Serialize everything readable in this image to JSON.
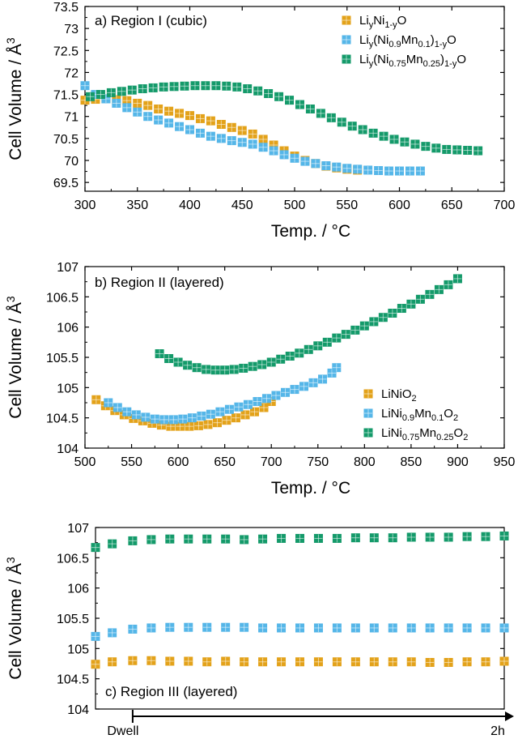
{
  "colors": {
    "orange": "#E3A21A",
    "blue": "#55B6E8",
    "green": "#149A6A"
  },
  "chart_data": [
    {
      "type": "scatter",
      "title": "a) Region I (cubic)",
      "xlabel": "Temp. / °C",
      "ylabel": "Cell Volume / Å³",
      "xlim": [
        300,
        700
      ],
      "ylim": [
        69.3,
        73.5
      ],
      "xticks": [
        "300",
        "350",
        "400",
        "450",
        "500",
        "550",
        "600",
        "650",
        "700"
      ],
      "yticks": [
        "69.5",
        "70",
        "70.5",
        "71",
        "71.5",
        "72",
        "72.5",
        "73",
        "73.5"
      ],
      "legend_position": "top-right",
      "series": [
        {
          "name": "LiyNi1-yO",
          "legend": {
            "base": "Li",
            "sub1": "y",
            "mid": "Ni",
            "sub2": "1-y",
            "end": "O"
          },
          "color_key": "orange",
          "x": [
            300,
            310,
            320,
            330,
            340,
            350,
            360,
            370,
            380,
            390,
            400,
            410,
            420,
            430,
            440,
            450,
            460,
            470,
            480,
            490,
            500,
            510,
            520,
            530,
            540,
            550,
            560
          ],
          "y": [
            71.37,
            71.39,
            71.4,
            71.38,
            71.36,
            71.3,
            71.25,
            71.17,
            71.12,
            71.07,
            71.02,
            70.95,
            70.9,
            70.82,
            70.75,
            70.68,
            70.6,
            70.48,
            70.35,
            70.22,
            70.1,
            70.0,
            69.93,
            69.87,
            69.83,
            69.8,
            69.78
          ]
        },
        {
          "name": "Liy(Ni0.9Mn0.1)1-yO",
          "legend": {
            "base": "Li",
            "sub1": "y",
            "mid": "(Ni",
            "sub2": "0.9",
            "mid2": "Mn",
            "sub3": "0.1",
            "mid3": ")",
            "sub4": "1-y",
            "end": "O"
          },
          "color_key": "blue",
          "x": [
            300,
            310,
            320,
            330,
            340,
            350,
            360,
            370,
            380,
            390,
            400,
            410,
            420,
            430,
            440,
            450,
            460,
            470,
            480,
            490,
            500,
            510,
            520,
            530,
            540,
            550,
            560,
            570,
            580,
            590,
            600,
            610,
            620
          ],
          "y": [
            71.7,
            71.5,
            71.4,
            71.3,
            71.2,
            71.1,
            71.0,
            70.92,
            70.85,
            70.77,
            70.7,
            70.62,
            70.55,
            70.5,
            70.45,
            70.41,
            70.37,
            70.3,
            70.22,
            70.13,
            70.05,
            69.98,
            69.93,
            69.88,
            69.85,
            69.82,
            69.8,
            69.78,
            69.77,
            69.76,
            69.76,
            69.76,
            69.76
          ]
        },
        {
          "name": "Liy(Ni0.75Mn0.25)1-yO",
          "legend": {
            "base": "Li",
            "sub1": "y",
            "mid": "(Ni",
            "sub2": "0.75",
            "mid2": "Mn",
            "sub3": "0.25",
            "mid3": ")",
            "sub4": "1-y",
            "end": "O"
          },
          "color_key": "green",
          "x": [
            305,
            315,
            325,
            335,
            345,
            355,
            365,
            375,
            385,
            395,
            405,
            415,
            425,
            435,
            445,
            455,
            465,
            475,
            485,
            495,
            505,
            515,
            525,
            535,
            545,
            555,
            565,
            575,
            585,
            595,
            605,
            615,
            625,
            635,
            645,
            655,
            665,
            675
          ],
          "y": [
            71.45,
            71.5,
            71.54,
            71.57,
            71.6,
            71.63,
            71.65,
            71.67,
            71.68,
            71.69,
            71.7,
            71.7,
            71.7,
            71.69,
            71.67,
            71.63,
            71.58,
            71.52,
            71.45,
            71.37,
            71.27,
            71.17,
            71.07,
            70.97,
            70.87,
            70.78,
            70.7,
            70.62,
            70.55,
            70.48,
            70.42,
            70.37,
            70.32,
            70.28,
            70.25,
            70.24,
            70.23,
            70.22
          ]
        }
      ]
    },
    {
      "type": "scatter",
      "title": "b) Region II (layered)",
      "xlabel": "Temp. / °C",
      "ylabel": "Cell Volume / Å³",
      "xlim": [
        500,
        950
      ],
      "ylim": [
        104,
        107
      ],
      "xticks": [
        "500",
        "550",
        "600",
        "650",
        "700",
        "750",
        "800",
        "850",
        "900",
        "950"
      ],
      "yticks": [
        "104",
        "104.5",
        "105",
        "105.5",
        "106",
        "106.5",
        "107"
      ],
      "legend_position": "bottom-right",
      "series": [
        {
          "name": "LiNiO2",
          "legend": {
            "base": "LiNiO",
            "sub1": "2"
          },
          "color_key": "orange",
          "x": [
            512,
            522,
            532,
            542,
            552,
            562,
            572,
            582,
            592,
            602,
            612,
            622,
            632,
            642,
            652,
            662,
            672,
            682,
            692,
            700
          ],
          "y": [
            104.8,
            104.7,
            104.62,
            104.55,
            104.49,
            104.45,
            104.41,
            104.38,
            104.36,
            104.36,
            104.36,
            104.37,
            104.39,
            104.42,
            104.46,
            104.5,
            104.55,
            104.6,
            104.67,
            104.77
          ]
        },
        {
          "name": "LiNi0.9Mn0.1O2",
          "legend": {
            "base": "LiNi",
            "sub1": "0.9",
            "mid": "Mn",
            "sub2": "0.1",
            "end": "O",
            "sub3": "2"
          },
          "color_key": "blue",
          "x": [
            525,
            535,
            545,
            555,
            565,
            575,
            585,
            595,
            605,
            615,
            625,
            635,
            645,
            655,
            665,
            675,
            685,
            695,
            705,
            715,
            725,
            735,
            745,
            755,
            765,
            770
          ],
          "y": [
            104.75,
            104.67,
            104.6,
            104.55,
            104.51,
            104.48,
            104.47,
            104.47,
            104.48,
            104.5,
            104.53,
            104.56,
            104.6,
            104.64,
            104.68,
            104.72,
            104.77,
            104.82,
            104.87,
            104.92,
            104.97,
            105.02,
            105.08,
            105.14,
            105.24,
            105.33
          ]
        },
        {
          "name": "LiNi0.75Mn0.25O2",
          "legend": {
            "base": "LiNi",
            "sub1": "0.75",
            "mid": "Mn",
            "sub2": "0.25",
            "end": "O",
            "sub3": "2"
          },
          "color_key": "green",
          "x": [
            580,
            590,
            600,
            610,
            620,
            630,
            640,
            650,
            660,
            670,
            680,
            690,
            700,
            710,
            720,
            730,
            740,
            750,
            760,
            770,
            780,
            790,
            800,
            810,
            820,
            830,
            840,
            850,
            860,
            870,
            880,
            890,
            900
          ],
          "y": [
            105.56,
            105.48,
            105.42,
            105.37,
            105.33,
            105.3,
            105.29,
            105.29,
            105.3,
            105.32,
            105.35,
            105.38,
            105.42,
            105.47,
            105.52,
            105.57,
            105.63,
            105.69,
            105.75,
            105.82,
            105.88,
            105.95,
            106.02,
            106.09,
            106.16,
            106.23,
            106.31,
            106.38,
            106.46,
            106.54,
            106.62,
            106.7,
            106.8
          ]
        }
      ]
    },
    {
      "type": "scatter",
      "title": "c) Region III (layered)",
      "ylabel": "Cell Volume / Å³",
      "xlim": [
        -0.2,
        2
      ],
      "ylim": [
        104,
        107
      ],
      "yticks": [
        "104",
        "104.5",
        "105",
        "105.5",
        "106",
        "106.5",
        "107"
      ],
      "dwell_label": "Dwell",
      "end_label": "2h",
      "series": [
        {
          "name": "LiNiO2",
          "color_key": "orange",
          "x": [
            -0.2,
            -0.11,
            0.0,
            0.1,
            0.2,
            0.3,
            0.4,
            0.5,
            0.6,
            0.7,
            0.8,
            0.9,
            1.0,
            1.1,
            1.2,
            1.3,
            1.4,
            1.5,
            1.6,
            1.7,
            1.8,
            1.9,
            2.0
          ],
          "y": [
            104.74,
            104.78,
            104.8,
            104.8,
            104.79,
            104.79,
            104.78,
            104.79,
            104.78,
            104.78,
            104.78,
            104.78,
            104.78,
            104.78,
            104.78,
            104.78,
            104.78,
            104.78,
            104.77,
            104.77,
            104.78,
            104.78,
            104.79
          ]
        },
        {
          "name": "LiNi0.9Mn0.1O2",
          "color_key": "blue",
          "x": [
            -0.2,
            -0.11,
            0.0,
            0.1,
            0.2,
            0.3,
            0.4,
            0.5,
            0.6,
            0.7,
            0.8,
            0.9,
            1.0,
            1.1,
            1.2,
            1.3,
            1.4,
            1.5,
            1.6,
            1.7,
            1.8,
            1.9,
            2.0
          ],
          "y": [
            105.2,
            105.26,
            105.32,
            105.34,
            105.35,
            105.35,
            105.35,
            105.35,
            105.35,
            105.34,
            105.34,
            105.34,
            105.34,
            105.34,
            105.34,
            105.34,
            105.34,
            105.34,
            105.34,
            105.34,
            105.34,
            105.34,
            105.34
          ]
        },
        {
          "name": "LiNi0.75Mn0.25O2",
          "color_key": "green",
          "x": [
            -0.2,
            -0.11,
            0.0,
            0.1,
            0.2,
            0.3,
            0.4,
            0.5,
            0.6,
            0.7,
            0.8,
            0.9,
            1.0,
            1.1,
            1.2,
            1.3,
            1.4,
            1.5,
            1.6,
            1.7,
            1.8,
            1.9,
            2.0
          ],
          "y": [
            106.67,
            106.73,
            106.78,
            106.8,
            106.81,
            106.81,
            106.81,
            106.81,
            106.8,
            106.81,
            106.82,
            106.82,
            106.82,
            106.82,
            106.83,
            106.83,
            106.83,
            106.84,
            106.84,
            106.84,
            106.85,
            106.85,
            106.86
          ]
        }
      ]
    }
  ]
}
